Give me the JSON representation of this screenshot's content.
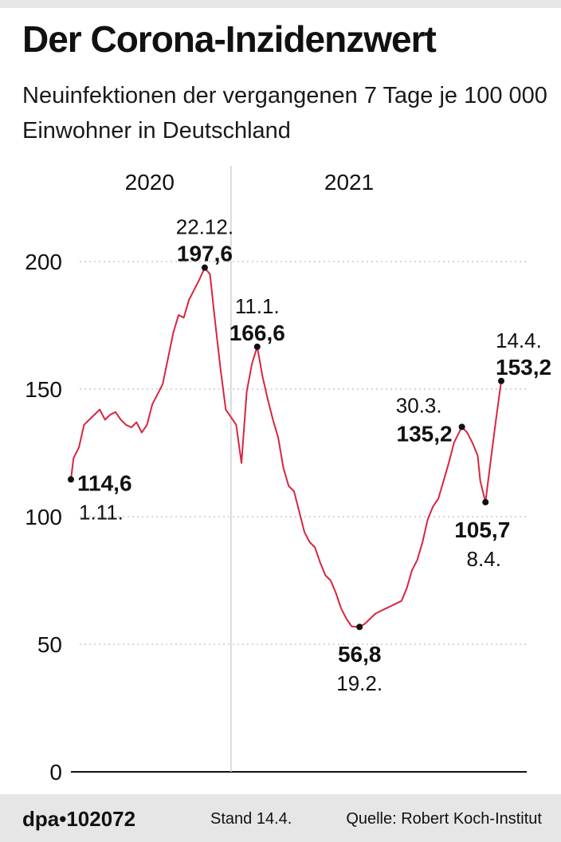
{
  "header": {
    "title": "Der Corona-Inzidenzwert",
    "subtitle": "Neuinfektionen der vergangenen 7 Tage je 100 000 Einwohner in Deutschland"
  },
  "footer": {
    "brand": "dpa•102072",
    "stand": "Stand 14.4.",
    "source": "Quelle: Robert Koch-Institut"
  },
  "chart_data": {
    "type": "line",
    "title": "Der Corona-Inzidenzwert",
    "subtitle": "Neuinfektionen der vergangenen 7 Tage je 100 000 Einwohner in Deutschland",
    "xlabel": "",
    "ylabel": "",
    "ylim": [
      0,
      200
    ],
    "yticks": [
      0,
      50,
      100,
      150,
      200
    ],
    "ytick_labels": [
      "0",
      "50",
      "100",
      "150",
      "200"
    ],
    "grid": "horizontal dotted",
    "line_color": "#d7263d",
    "year_labels": [
      {
        "label": "2020",
        "date": "2020-12-01"
      },
      {
        "label": "2021",
        "date": "2021-02-15"
      }
    ],
    "year_divider_date": "2021-01-01",
    "x_start": "2020-11-01",
    "x_end": "2021-04-14",
    "series": [
      {
        "points": [
          [
            "2020-11-01",
            114.6
          ],
          [
            "2020-11-02",
            123
          ],
          [
            "2020-11-04",
            127
          ],
          [
            "2020-11-06",
            136
          ],
          [
            "2020-11-08",
            138
          ],
          [
            "2020-11-10",
            140
          ],
          [
            "2020-11-12",
            142
          ],
          [
            "2020-11-14",
            138
          ],
          [
            "2020-11-16",
            140
          ],
          [
            "2020-11-18",
            141
          ],
          [
            "2020-11-20",
            138
          ],
          [
            "2020-11-22",
            136
          ],
          [
            "2020-11-24",
            135
          ],
          [
            "2020-11-26",
            137
          ],
          [
            "2020-11-28",
            133
          ],
          [
            "2020-11-30",
            136
          ],
          [
            "2020-12-02",
            144
          ],
          [
            "2020-12-04",
            148
          ],
          [
            "2020-12-06",
            152
          ],
          [
            "2020-12-08",
            162
          ],
          [
            "2020-12-10",
            172
          ],
          [
            "2020-12-12",
            179
          ],
          [
            "2020-12-14",
            178
          ],
          [
            "2020-12-16",
            185
          ],
          [
            "2020-12-18",
            189
          ],
          [
            "2020-12-20",
            193
          ],
          [
            "2020-12-22",
            197.6
          ],
          [
            "2020-12-24",
            195
          ],
          [
            "2020-12-26",
            176
          ],
          [
            "2020-12-28",
            158
          ],
          [
            "2020-12-30",
            142
          ],
          [
            "2021-01-01",
            139
          ],
          [
            "2021-01-03",
            136
          ],
          [
            "2021-01-05",
            121
          ],
          [
            "2021-01-07",
            149
          ],
          [
            "2021-01-09",
            160
          ],
          [
            "2021-01-11",
            166.6
          ],
          [
            "2021-01-13",
            155
          ],
          [
            "2021-01-15",
            146
          ],
          [
            "2021-01-17",
            138
          ],
          [
            "2021-01-19",
            131
          ],
          [
            "2021-01-21",
            119
          ],
          [
            "2021-01-23",
            112
          ],
          [
            "2021-01-25",
            110
          ],
          [
            "2021-01-27",
            102
          ],
          [
            "2021-01-29",
            94
          ],
          [
            "2021-01-31",
            90
          ],
          [
            "2021-02-02",
            88
          ],
          [
            "2021-02-04",
            82
          ],
          [
            "2021-02-06",
            77
          ],
          [
            "2021-02-08",
            75
          ],
          [
            "2021-02-10",
            70
          ],
          [
            "2021-02-12",
            64
          ],
          [
            "2021-02-14",
            60
          ],
          [
            "2021-02-16",
            57
          ],
          [
            "2021-02-19",
            56.8
          ],
          [
            "2021-02-21",
            58
          ],
          [
            "2021-02-23",
            60
          ],
          [
            "2021-02-25",
            62
          ],
          [
            "2021-02-27",
            63
          ],
          [
            "2021-03-01",
            64
          ],
          [
            "2021-03-03",
            65
          ],
          [
            "2021-03-05",
            66
          ],
          [
            "2021-03-07",
            67
          ],
          [
            "2021-03-09",
            72
          ],
          [
            "2021-03-11",
            79
          ],
          [
            "2021-03-13",
            83
          ],
          [
            "2021-03-15",
            90
          ],
          [
            "2021-03-17",
            99
          ],
          [
            "2021-03-19",
            104
          ],
          [
            "2021-03-21",
            107
          ],
          [
            "2021-03-23",
            114
          ],
          [
            "2021-03-25",
            121
          ],
          [
            "2021-03-27",
            129
          ],
          [
            "2021-03-30",
            135.2
          ],
          [
            "2021-04-01",
            133
          ],
          [
            "2021-04-03",
            129
          ],
          [
            "2021-04-05",
            124
          ],
          [
            "2021-04-06",
            114
          ],
          [
            "2021-04-08",
            105.7
          ],
          [
            "2021-04-10",
            122
          ],
          [
            "2021-04-12",
            138
          ],
          [
            "2021-04-14",
            153.2
          ]
        ]
      }
    ],
    "annotations": [
      {
        "date": "2020-11-01",
        "value": 114.6,
        "value_label": "114,6",
        "date_label": "1.11.",
        "position": "right-below"
      },
      {
        "date": "2020-12-22",
        "value": 197.6,
        "value_label": "197,6",
        "date_label": "22.12.",
        "position": "above"
      },
      {
        "date": "2021-01-11",
        "value": 166.6,
        "value_label": "166,6",
        "date_label": "11.1.",
        "position": "above"
      },
      {
        "date": "2021-02-19",
        "value": 56.8,
        "value_label": "56,8",
        "date_label": "19.2.",
        "position": "below"
      },
      {
        "date": "2021-03-30",
        "value": 135.2,
        "value_label": "135,2",
        "date_label": "30.3.",
        "position": "left"
      },
      {
        "date": "2021-04-08",
        "value": 105.7,
        "value_label": "105,7",
        "date_label": "8.4.",
        "position": "below"
      },
      {
        "date": "2021-04-14",
        "value": 153.2,
        "value_label": "153,2",
        "date_label": "14.4.",
        "position": "above"
      }
    ]
  }
}
